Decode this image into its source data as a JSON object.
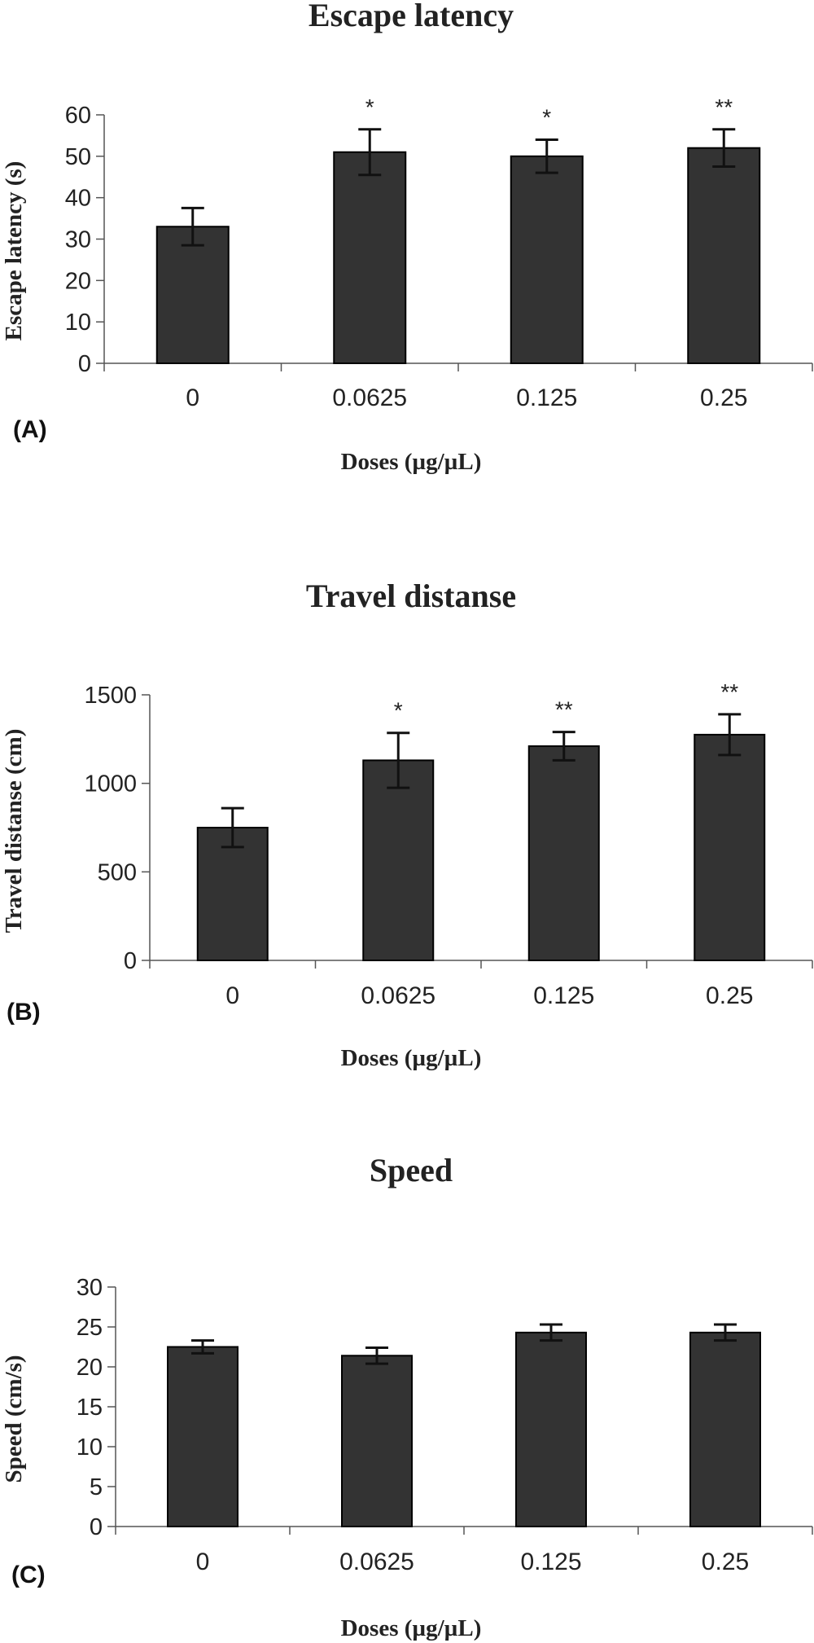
{
  "colors": {
    "bar": "#333333",
    "bar_edge": "#000000",
    "axis": "#555555",
    "error": "#111111"
  },
  "chart_data": [
    {
      "type": "bar",
      "panel_label": "(A)",
      "title": "Escape latency",
      "ylabel": "Escape latency (s)",
      "xlabel": "Doses (µg/µL)",
      "categories": [
        "0",
        "0.0625",
        "0.125",
        "0.25"
      ],
      "values": [
        33,
        51,
        50,
        52
      ],
      "errors": [
        4.5,
        5.5,
        4,
        4.5
      ],
      "significance": [
        "",
        "*",
        "*",
        "**"
      ],
      "ylim": [
        0,
        60
      ],
      "yticks": [
        0,
        10,
        20,
        30,
        40,
        50,
        60
      ],
      "grid": false
    },
    {
      "type": "bar",
      "panel_label": "(B)",
      "title": "Travel distanse",
      "ylabel": "Travel distanse (cm)",
      "xlabel": "Doses (µg/µL)",
      "categories": [
        "0",
        "0.0625",
        "0.125",
        "0.25"
      ],
      "values": [
        750,
        1130,
        1210,
        1275
      ],
      "errors": [
        110,
        155,
        80,
        115
      ],
      "significance": [
        "",
        "*",
        "**",
        "**"
      ],
      "ylim": [
        0,
        1500
      ],
      "yticks": [
        0,
        500,
        1000,
        1500
      ],
      "grid": false
    },
    {
      "type": "bar",
      "panel_label": "(C)",
      "title": "Speed",
      "ylabel": "Speed (cm/s)",
      "xlabel": "Doses (µg/µL)",
      "categories": [
        "0",
        "0.0625",
        "0.125",
        "0.25"
      ],
      "values": [
        22.5,
        21.4,
        24.3,
        24.3
      ],
      "errors": [
        0.8,
        1.0,
        1.0,
        1.0
      ],
      "significance": [
        "",
        "",
        "",
        ""
      ],
      "ylim": [
        0,
        30
      ],
      "yticks": [
        0,
        5,
        10,
        15,
        20,
        25,
        30
      ],
      "grid": false
    }
  ]
}
